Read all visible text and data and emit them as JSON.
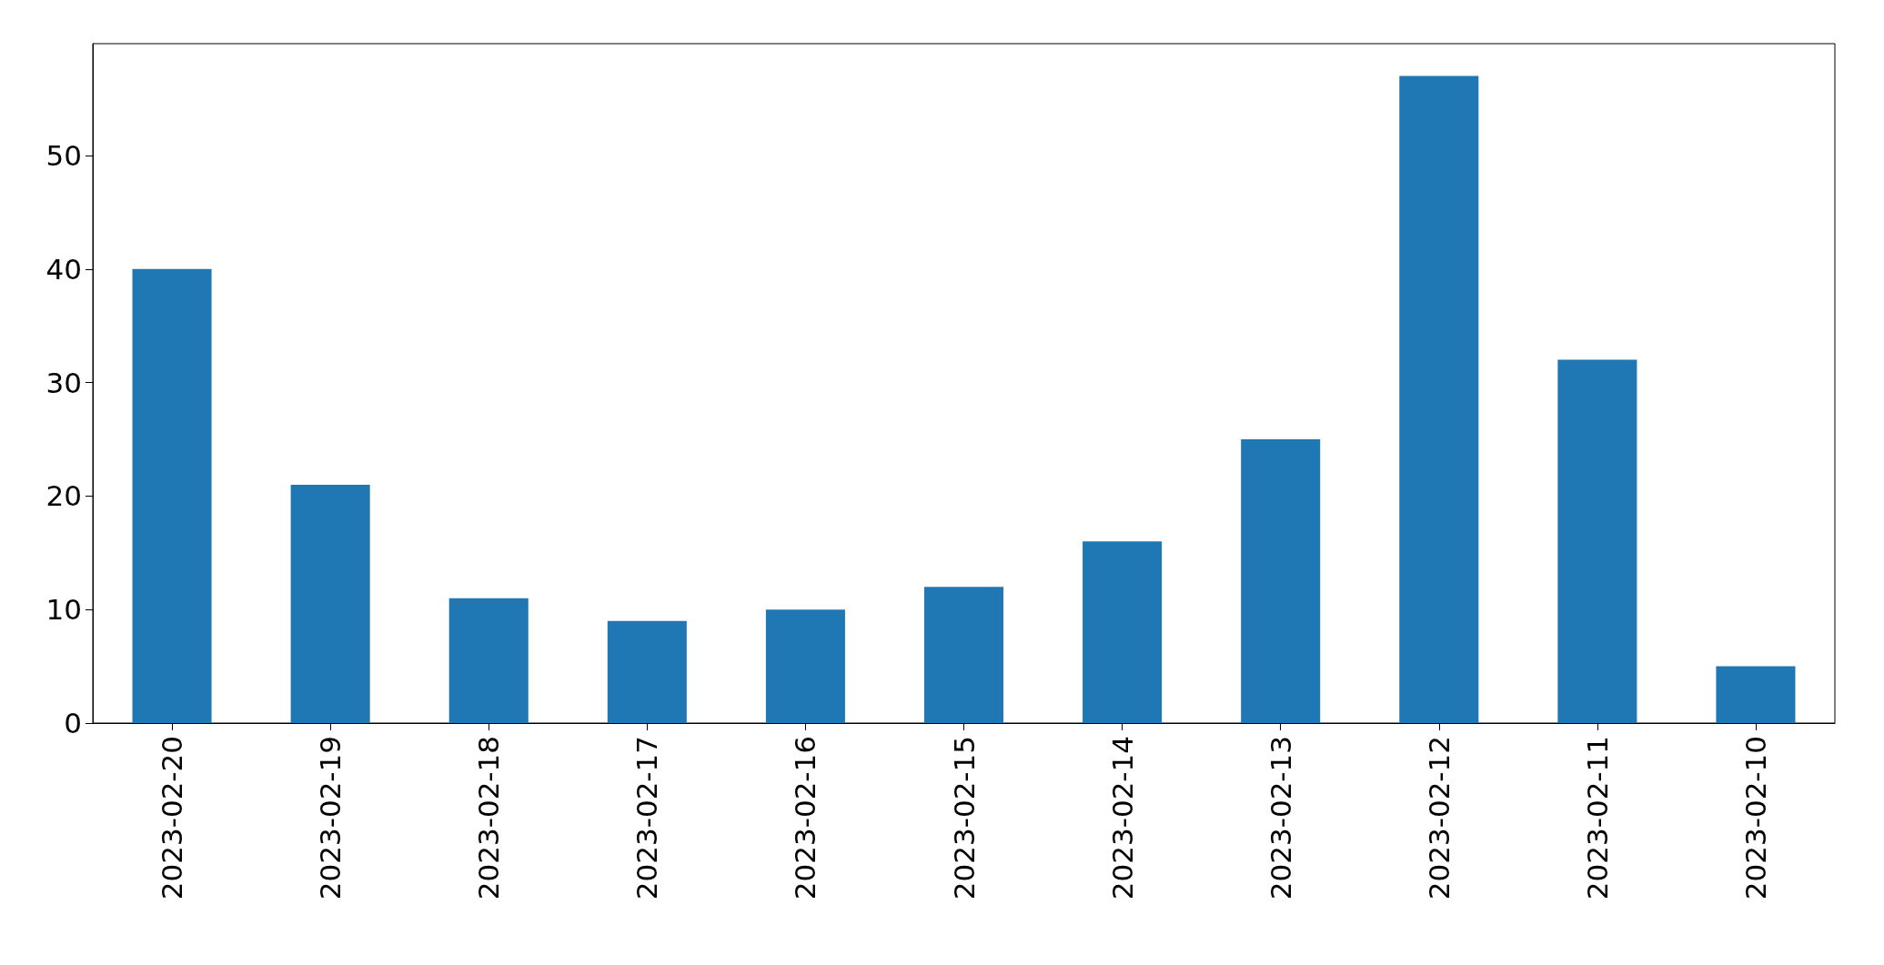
{
  "chart_data": {
    "type": "bar",
    "categories": [
      "2023-02-20",
      "2023-02-19",
      "2023-02-18",
      "2023-02-17",
      "2023-02-16",
      "2023-02-15",
      "2023-02-14",
      "2023-02-13",
      "2023-02-12",
      "2023-02-11",
      "2023-02-10"
    ],
    "values": [
      40,
      21,
      11,
      9,
      10,
      12,
      16,
      25,
      57,
      32,
      5
    ],
    "color": "#1f77b4",
    "ylim": [
      0,
      59.85
    ],
    "yticks": [
      0,
      10,
      20,
      30,
      40,
      50
    ]
  }
}
